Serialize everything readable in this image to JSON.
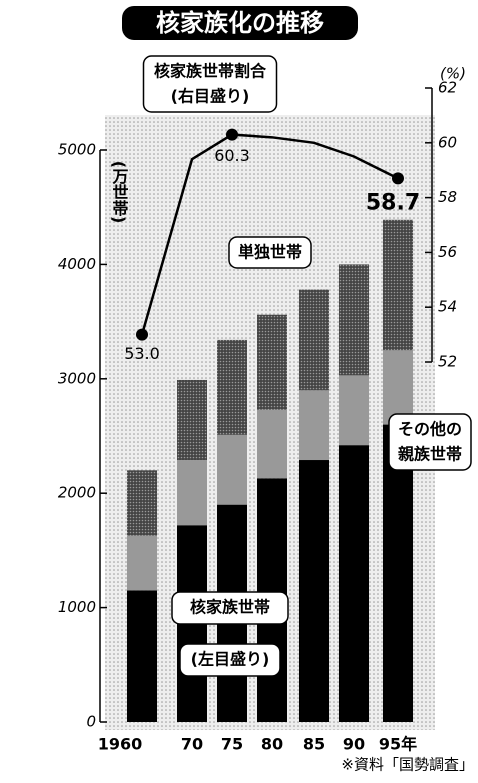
{
  "chart_data": {
    "type": "stacked-bar-line",
    "title": "核家族化の推移",
    "y_label": "(万世帯)",
    "y2_label": "(%)",
    "source": "※資料「国勢調査」",
    "categories": [
      "1960",
      "70",
      "75",
      "80",
      "85",
      "90",
      "95年"
    ],
    "ylim": [
      0,
      5000
    ],
    "yticks": [
      0,
      1000,
      2000,
      3000,
      4000,
      5000
    ],
    "y2lim": [
      52,
      62
    ],
    "y2ticks": [
      52,
      54,
      56,
      58,
      60,
      62
    ],
    "series": [
      {
        "label": [
          "核家族世帯",
          "(左目盛り)"
        ],
        "color": "#000000",
        "values": [
          1150,
          1720,
          1900,
          2130,
          2290,
          2420,
          2600
        ]
      },
      {
        "label": [
          "その他の",
          "親族世帯"
        ],
        "color": "#999999",
        "values": [
          480,
          570,
          610,
          600,
          610,
          610,
          650
        ]
      },
      {
        "label": [
          "単独世帯"
        ],
        "color": "#444444",
        "values": [
          570,
          700,
          830,
          830,
          880,
          970,
          1140
        ]
      },
      {
        "label": [
          "核家族世帯割合",
          "(右目盛り)"
        ],
        "color": "#000000",
        "axis": "y2",
        "type": "line",
        "values": [
          53.0,
          59.4,
          60.3,
          60.2,
          60.0,
          59.5,
          58.7
        ],
        "value_labels": [
          "53.0",
          null,
          "60.3",
          null,
          null,
          null,
          "58.7"
        ]
      }
    ]
  }
}
